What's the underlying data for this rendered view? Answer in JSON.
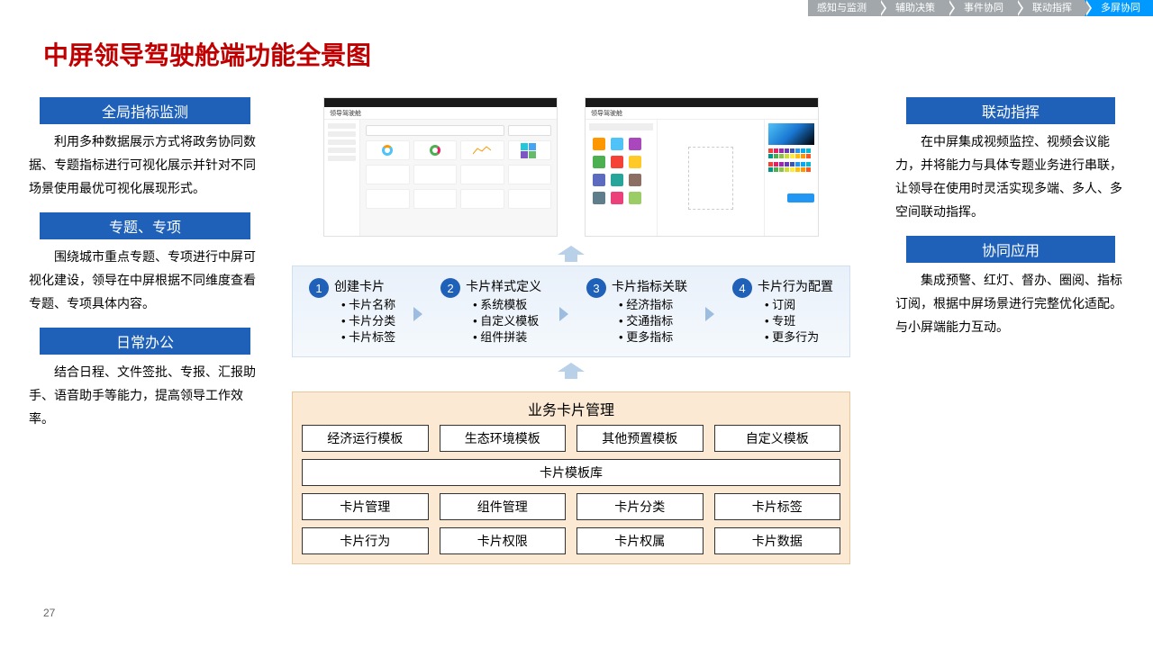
{
  "breadcrumb": [
    "感知与监测",
    "辅助决策",
    "事件协同",
    "联动指挥",
    "多屏协同"
  ],
  "breadcrumb_active_index": 4,
  "title": "中屏领导驾驶舱端功能全景图",
  "page_number": "27",
  "left_sections": [
    {
      "heading": "全局指标监测",
      "text": "利用多种数据展示方式将政务协同数据、专题指标进行可视化展示并针对不同场景使用最优可视化展现形式。"
    },
    {
      "heading": "专题、专项",
      "text": "围绕城市重点专题、专项进行中屏可视化建设，领导在中屏根据不同维度查看专题、专项具体内容。"
    },
    {
      "heading": "日常办公",
      "text": "结合日程、文件签批、专报、汇报助手、语音助手等能力，提高领导工作效率。"
    }
  ],
  "right_sections": [
    {
      "heading": "联动指挥",
      "text": "在中屏集成视频监控、视频会议能力，并将能力与具体专题业务进行串联，让领导在使用时灵活实现多端、多人、多空间联动指挥。"
    },
    {
      "heading": "协同应用",
      "text": "集成预警、红灯、督办、圈阅、指标订阅，根据中屏场景进行完整优化适配。与小屏端能力互动。"
    }
  ],
  "steps": [
    {
      "num": "1",
      "title": "创建卡片",
      "items": [
        "卡片名称",
        "卡片分类",
        "卡片标签"
      ]
    },
    {
      "num": "2",
      "title": "卡片样式定义",
      "items": [
        "系统模板",
        "自定义模板",
        "组件拼装"
      ]
    },
    {
      "num": "3",
      "title": "卡片指标关联",
      "items": [
        "经济指标",
        "交通指标",
        "更多指标"
      ]
    },
    {
      "num": "4",
      "title": "卡片行为配置",
      "items": [
        "订阅",
        "专班",
        "更多行为"
      ]
    }
  ],
  "biz": {
    "title": "业务卡片管理",
    "rows": [
      [
        "经济运行模板",
        "生态环境模板",
        "其他预置模板",
        "自定义模板"
      ],
      [
        "卡片模板库"
      ],
      [
        "卡片管理",
        "组件管理",
        "卡片分类",
        "卡片标签"
      ],
      [
        "卡片行为",
        "卡片权限",
        "卡片权属",
        "卡片数据"
      ]
    ]
  },
  "colors": {
    "title_color": "#c00000",
    "header_bg": "#1f61b8",
    "step_bg_top": "#e8f0fa",
    "biz_bg": "#fbe9d3",
    "breadcrumb_inactive": "#a2a7ab",
    "breadcrumb_active": "#0099ff"
  },
  "mock_palette": {
    "tiles": [
      "#26c6da",
      "#42a5f5",
      "#7e57c2",
      "#66bb6a"
    ],
    "icons": [
      "#ff9800",
      "#4fc3f7",
      "#ab47bc",
      "#4caf50",
      "#f44336",
      "#ffca28",
      "#5c6bc0",
      "#26a69a",
      "#8d6e63",
      "#607d8b",
      "#ec407a",
      "#9ccc65"
    ],
    "swatches": [
      "#f44336",
      "#e91e63",
      "#9c27b0",
      "#673ab7",
      "#3f51b5",
      "#2196f3",
      "#03a9f4",
      "#00bcd4",
      "#009688",
      "#4caf50",
      "#8bc34a",
      "#cddc39",
      "#ffeb3b",
      "#ffc107",
      "#ff9800",
      "#ff5722"
    ]
  }
}
